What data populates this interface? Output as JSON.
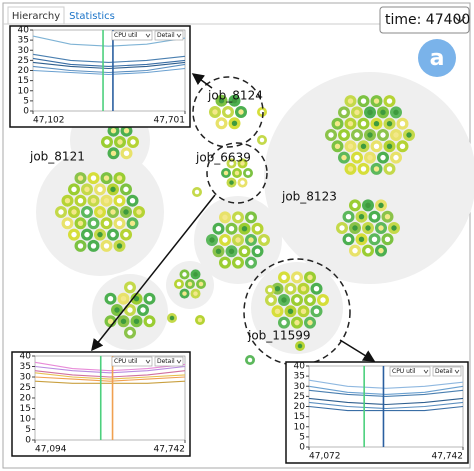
{
  "tabs": [
    "Hierarchy",
    "Statistics"
  ],
  "time_label": "time: 47400",
  "badge": "a",
  "jobs": [
    "job_8124",
    "job_8121",
    "job_6639",
    "job_8123",
    "job_11599"
  ],
  "detail_charts": [
    {
      "type": "line",
      "dropdowns": [
        "CPU util",
        "Detail"
      ],
      "x": [
        47102,
        47250,
        47400,
        47550,
        47701
      ],
      "xlim": [
        47102,
        47701
      ],
      "xticks": [
        {
          "value": 47102,
          "label": "47,102"
        },
        {
          "value": 47701,
          "label": "47,701"
        }
      ],
      "ylim": [
        0,
        40
      ],
      "yticks": [
        0,
        5,
        10,
        15,
        20,
        25,
        30,
        35,
        40
      ],
      "series": [
        {
          "color": "#7fb3d5",
          "values": [
            37,
            33,
            32,
            33,
            36
          ]
        },
        {
          "color": "#4a7fb0",
          "values": [
            28,
            25,
            24,
            25,
            27
          ]
        },
        {
          "color": "#2f5f8f",
          "values": [
            24,
            22,
            21,
            22,
            24
          ]
        },
        {
          "color": "#5b8fc0",
          "values": [
            22,
            20,
            19,
            20,
            23
          ]
        },
        {
          "color": "#3a6ea5",
          "values": [
            26,
            23,
            22,
            23,
            25
          ]
        },
        {
          "color": "#6aa0d0",
          "values": [
            20,
            19,
            18,
            19,
            21
          ]
        }
      ],
      "markers": [
        {
          "color": "#4cd07d",
          "x": 47378
        },
        {
          "color": "#2a5fa0",
          "x": 47417
        }
      ]
    },
    {
      "type": "line",
      "dropdowns": [
        "CPU util",
        "Detail"
      ],
      "x": [
        47094,
        47256,
        47418,
        47580,
        47742
      ],
      "xlim": [
        47094,
        47742
      ],
      "xticks": [
        {
          "value": 47094,
          "label": "47,094"
        },
        {
          "value": 47742,
          "label": "47,742"
        }
      ],
      "ylim": [
        0,
        40
      ],
      "yticks": [
        0,
        5,
        10,
        15,
        20,
        25,
        30,
        35,
        40
      ],
      "series": [
        {
          "color": "#e88ad8",
          "values": [
            37,
            34,
            33,
            34,
            36
          ]
        },
        {
          "color": "#b98be0",
          "values": [
            35,
            33,
            32,
            33,
            35
          ]
        },
        {
          "color": "#f0a050",
          "values": [
            30,
            29,
            28,
            29,
            30
          ]
        },
        {
          "color": "#e8c050",
          "values": [
            32,
            30,
            29,
            30,
            31
          ]
        },
        {
          "color": "#d070a0",
          "values": [
            33,
            31,
            30,
            31,
            33
          ]
        },
        {
          "color": "#c9a040",
          "values": [
            28,
            27,
            27,
            27,
            28
          ]
        }
      ],
      "markers": [
        {
          "color": "#4cd07d",
          "x": 47378
        },
        {
          "color": "#f0a050",
          "x": 47429
        }
      ]
    },
    {
      "type": "line",
      "dropdowns": [
        "CPU util",
        "Detail"
      ],
      "x": [
        47072,
        47240,
        47407,
        47575,
        47742
      ],
      "xlim": [
        47072,
        47742
      ],
      "xticks": [
        {
          "value": 47072,
          "label": "47,072"
        },
        {
          "value": 47742,
          "label": "47,742"
        }
      ],
      "ylim": [
        0,
        40
      ],
      "yticks": [
        0,
        5,
        10,
        15,
        20,
        25,
        30,
        35,
        40
      ],
      "series": [
        {
          "color": "#8fb8e0",
          "values": [
            33,
            30,
            29,
            30,
            32
          ]
        },
        {
          "color": "#4a7fb0",
          "values": [
            28,
            26,
            25,
            26,
            28
          ]
        },
        {
          "color": "#2f5f8f",
          "values": [
            24,
            22,
            21,
            22,
            24
          ]
        },
        {
          "color": "#5b8fc0",
          "values": [
            22,
            20,
            19,
            20,
            22
          ]
        },
        {
          "color": "#3a6ea5",
          "values": [
            20,
            18,
            18,
            18,
            20
          ]
        },
        {
          "color": "#6aa0d0",
          "values": [
            30,
            27,
            26,
            27,
            30
          ]
        }
      ],
      "markers": [
        {
          "color": "#4cd07d",
          "x": 47312
        },
        {
          "color": "#2a5fa0",
          "x": 47396
        }
      ]
    }
  ]
}
